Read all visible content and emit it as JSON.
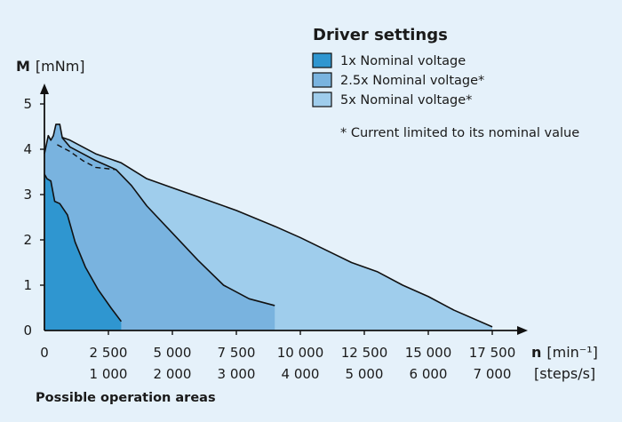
{
  "chart_data": {
    "type": "area",
    "legend_title": "Driver settings",
    "y_axis": {
      "symbol": "M",
      "unit": "[mNm]",
      "ticks": [
        "0",
        "1",
        "2",
        "3",
        "4",
        "5"
      ],
      "range": [
        0,
        5.5
      ]
    },
    "x_axis": {
      "symbol": "n",
      "unit": "[min⁻¹]",
      "secondary_unit": "[steps/s]",
      "range": [
        0,
        19000
      ],
      "ticks": [
        {
          "value": 0,
          "label": "0",
          "label2": ""
        },
        {
          "value": 2500,
          "label": "2 500",
          "label2": "1 000"
        },
        {
          "value": 5000,
          "label": "5 000",
          "label2": "2 000"
        },
        {
          "value": 7500,
          "label": "7 500",
          "label2": "3 000"
        },
        {
          "value": 10000,
          "label": "10 000",
          "label2": "4 000"
        },
        {
          "value": 12500,
          "label": "12 500",
          "label2": "5 000"
        },
        {
          "value": 15000,
          "label": "15 000",
          "label2": "6 000"
        },
        {
          "value": 17500,
          "label": "17 500",
          "label2": "7 000"
        }
      ]
    },
    "series": [
      {
        "name": "5x Nominal voltage*",
        "color": "#9fcdec",
        "points": [
          [
            0,
            3.85
          ],
          [
            250,
            4.15
          ],
          [
            500,
            4.3
          ],
          [
            1000,
            4.2
          ],
          [
            1500,
            4.05
          ],
          [
            2000,
            3.9
          ],
          [
            3000,
            3.7
          ],
          [
            4000,
            3.35
          ],
          [
            5000,
            3.15
          ],
          [
            6000,
            2.95
          ],
          [
            7500,
            2.65
          ],
          [
            9000,
            2.3
          ],
          [
            10000,
            2.05
          ],
          [
            12000,
            1.5
          ],
          [
            13000,
            1.3
          ],
          [
            14000,
            1.0
          ],
          [
            15000,
            0.75
          ],
          [
            16000,
            0.45
          ],
          [
            17500,
            0.08
          ]
        ]
      },
      {
        "name": "2.5x Nominal voltage*",
        "color": "#79b3df",
        "points": [
          [
            0,
            3.9
          ],
          [
            150,
            4.3
          ],
          [
            250,
            4.2
          ],
          [
            350,
            4.3
          ],
          [
            450,
            4.55
          ],
          [
            600,
            4.55
          ],
          [
            700,
            4.25
          ],
          [
            1000,
            4.05
          ],
          [
            1500,
            3.9
          ],
          [
            2000,
            3.75
          ],
          [
            2800,
            3.55
          ],
          [
            3400,
            3.2
          ],
          [
            4000,
            2.75
          ],
          [
            5000,
            2.15
          ],
          [
            6000,
            1.55
          ],
          [
            7000,
            1.0
          ],
          [
            8000,
            0.7
          ],
          [
            9000,
            0.55
          ]
        ]
      },
      {
        "name": "1x Nominal voltage",
        "color": "#2f96d0",
        "points": [
          [
            0,
            3.45
          ],
          [
            100,
            3.35
          ],
          [
            250,
            3.3
          ],
          [
            400,
            2.85
          ],
          [
            600,
            2.8
          ],
          [
            900,
            2.55
          ],
          [
            1200,
            1.95
          ],
          [
            1600,
            1.4
          ],
          [
            2100,
            0.9
          ],
          [
            2600,
            0.5
          ],
          [
            3000,
            0.2
          ]
        ]
      }
    ],
    "dashed_series": {
      "points": [
        [
          500,
          4.1
        ],
        [
          1000,
          3.95
        ],
        [
          1500,
          3.75
        ],
        [
          2000,
          3.6
        ],
        [
          2800,
          3.55
        ]
      ]
    },
    "note": "* Current limited to its nominal value",
    "caption": "Possible operation areas"
  }
}
